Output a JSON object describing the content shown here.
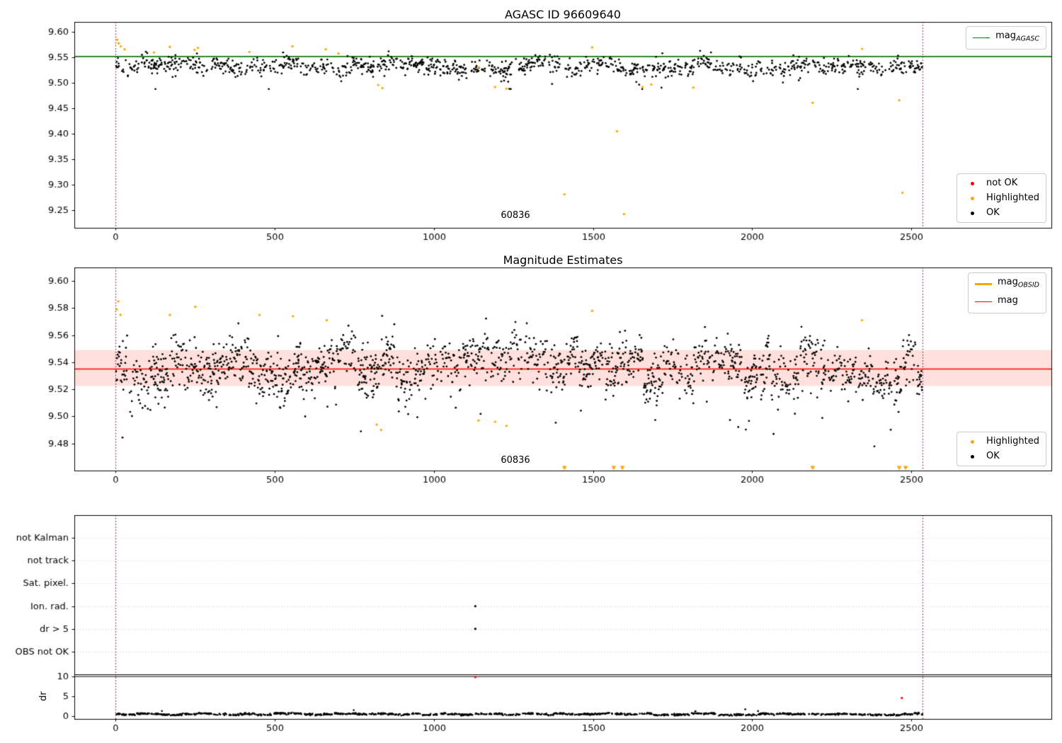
{
  "background": "#ffffff",
  "ref_lines": {
    "x": [
      0,
      2535
    ],
    "color": "#800080",
    "style": "dotted"
  },
  "chart_data": [
    {
      "id": "agasc_mag",
      "type": "scatter",
      "title": "AGASC ID 96609640",
      "xlim": [
        -130,
        2940
      ],
      "ylim": [
        9.215,
        9.62
      ],
      "xticks": [
        0,
        500,
        1000,
        1500,
        2000,
        2500
      ],
      "yticks": [
        "9.60",
        "9.55",
        "9.50",
        "9.45",
        "9.40",
        "9.35",
        "9.30",
        "9.25"
      ],
      "hline": {
        "y": 9.552,
        "color": "#008000",
        "label_main": "mag",
        "label_sub": "AGASC"
      },
      "annotation": {
        "text": "60836",
        "x": 1255,
        "y": 9.24
      },
      "ok_series": {
        "name": "OK",
        "color": "#000000",
        "seed": 7,
        "x_max": 2535,
        "mean": 9.534,
        "cluster_spread": 0.016,
        "point_sd": 0.0085,
        "clip": [
          9.488,
          9.582
        ],
        "keep": 0.62,
        "out_p": 0.012,
        "out_dir": -1,
        "out_base": 0.015,
        "out_rand": 0.03
      },
      "highlighted_points": [
        [
          4,
          9.585
        ],
        [
          9,
          9.578
        ],
        [
          16,
          9.572
        ],
        [
          28,
          9.566
        ],
        [
          120,
          9.56
        ],
        [
          170,
          9.571
        ],
        [
          248,
          9.565
        ],
        [
          258,
          9.569
        ],
        [
          420,
          9.561
        ],
        [
          555,
          9.572
        ],
        [
          660,
          9.566
        ],
        [
          700,
          9.558
        ],
        [
          825,
          9.496
        ],
        [
          838,
          9.49
        ],
        [
          1140,
          9.531
        ],
        [
          1192,
          9.492
        ],
        [
          1228,
          9.489
        ],
        [
          1410,
          9.281
        ],
        [
          1497,
          9.57
        ],
        [
          1575,
          9.405
        ],
        [
          1597,
          9.242
        ],
        [
          1655,
          9.492
        ],
        [
          1683,
          9.497
        ],
        [
          1815,
          9.491
        ],
        [
          2190,
          9.461
        ],
        [
          2345,
          9.567
        ],
        [
          2462,
          9.466
        ],
        [
          2472,
          9.284
        ]
      ],
      "legend_line": [
        {
          "main": "mag",
          "sub": "AGASC",
          "color": "#008000"
        }
      ],
      "legend_markers": [
        {
          "label": "not OK",
          "color": "#ff0000"
        },
        {
          "label": "Highlighted",
          "color": "#ffa500"
        },
        {
          "label": "OK",
          "color": "#000000"
        }
      ]
    },
    {
      "id": "mag_estimates",
      "type": "scatter",
      "title": "Magnitude Estimates",
      "xlim": [
        -130,
        2940
      ],
      "ylim": [
        9.46,
        9.61
      ],
      "xticks": [
        0,
        500,
        1000,
        1500,
        2000,
        2500
      ],
      "yticks": [
        "9.60",
        "9.58",
        "9.56",
        "9.54",
        "9.52",
        "9.50",
        "9.48"
      ],
      "hline": {
        "y": 9.535,
        "color": "#ff0000",
        "label_main": "mag",
        "label_sub": ""
      },
      "band": {
        "y0": 9.5225,
        "y1": 9.549,
        "color": "rgba(255,60,40,0.16)"
      },
      "annotation": {
        "text": "60836",
        "x": 1255,
        "y": 9.468
      },
      "ok_series": {
        "name": "OK",
        "color": "#000000",
        "seed": 11,
        "x_max": 2535,
        "mean": 9.536,
        "cluster_spread": 0.024,
        "point_sd": 0.0095,
        "clip": [
          9.469,
          9.601
        ],
        "keep": 1.0,
        "out_p": 0.015,
        "out_dir": -1,
        "out_base": 0.015,
        "out_rand": 0.028
      },
      "highlighted_points": [
        [
          3,
          9.579
        ],
        [
          8,
          9.585
        ],
        [
          15,
          9.575
        ],
        [
          170,
          9.575
        ],
        [
          250,
          9.581
        ],
        [
          452,
          9.575
        ],
        [
          557,
          9.574
        ],
        [
          663,
          9.571
        ],
        [
          820,
          9.494
        ],
        [
          834,
          9.49
        ],
        [
          1140,
          9.497
        ],
        [
          1192,
          9.496
        ],
        [
          1228,
          9.493
        ],
        [
          1497,
          9.578
        ],
        [
          2345,
          9.571
        ]
      ],
      "clipped_low_x": [
        1410,
        1565,
        1592,
        2190,
        2462,
        2482
      ],
      "legend_line": [
        {
          "main": "mag",
          "sub": "OBSID",
          "color": "#ffa500",
          "thick": true
        },
        {
          "main": "mag",
          "sub": "",
          "color": "#ff0000",
          "thick": false
        }
      ],
      "legend_markers": [
        {
          "label": "Highlighted",
          "color": "#ffa500"
        },
        {
          "label": "OK",
          "color": "#000000"
        }
      ]
    },
    {
      "id": "flags",
      "type": "scatter",
      "xlim": [
        -130,
        2940
      ],
      "categories": [
        "not Kalman",
        "not track",
        "Sat. pixel.",
        "Ion. rad.",
        "dr > 5",
        "OBS not OK"
      ],
      "points": [
        {
          "x": 1130,
          "category": "Ion. rad.",
          "color": "#000000"
        },
        {
          "x": 1130,
          "category": "dr > 5",
          "color": "#000000"
        }
      ]
    },
    {
      "id": "dr",
      "type": "scatter",
      "ylabel": "dr",
      "xlim": [
        -130,
        2940
      ],
      "ylim": [
        -0.7,
        10.55
      ],
      "xticks": [
        0,
        500,
        1000,
        1500,
        2000,
        2500
      ],
      "yticks": [
        10,
        5,
        0
      ],
      "hline": {
        "y": 10,
        "color": "#000000"
      },
      "ok_series": {
        "name": "OK",
        "color": "#000000",
        "seed": 23,
        "x_max": 2535,
        "mean": 0.5,
        "cluster_spread": 0.45,
        "point_sd": 0.1,
        "clip": [
          0.03,
          2.3
        ],
        "keep": 0.6,
        "out_p": 0.006,
        "out_dir": 1,
        "out_base": 0.5,
        "out_rand": 1.0
      },
      "not_ok_points": [
        [
          1130,
          9.85
        ],
        [
          2470,
          4.6
        ]
      ]
    }
  ]
}
